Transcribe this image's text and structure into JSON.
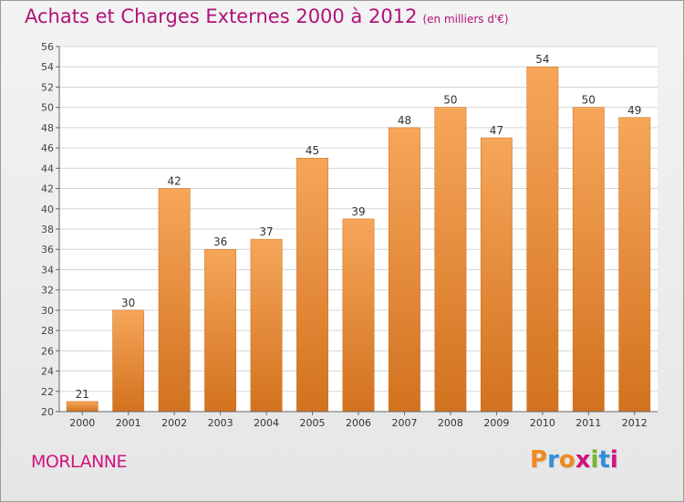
{
  "header": {
    "title": "Achats et Charges Externes 2000 à 2012",
    "subtitle": "(en milliers d'€)"
  },
  "commune": "MORLANNE",
  "logo": {
    "letters": [
      "P",
      "r",
      "o",
      "x",
      "i",
      "t",
      "i"
    ]
  },
  "colors": {
    "title": "#b0127a",
    "bar_light": "#f6a65a",
    "bar_dark": "#d2721e",
    "grid": "#d6d6d6",
    "axis": "#666666"
  },
  "chart_data": {
    "type": "bar",
    "title": "Achats et Charges Externes 2000 à 2012",
    "subtitle": "(en milliers d'€)",
    "xlabel": "",
    "ylabel": "",
    "categories": [
      "2000",
      "2001",
      "2002",
      "2003",
      "2004",
      "2005",
      "2006",
      "2007",
      "2008",
      "2009",
      "2010",
      "2011",
      "2012"
    ],
    "values": [
      21,
      30,
      42,
      36,
      37,
      45,
      39,
      48,
      50,
      47,
      54,
      50,
      49
    ],
    "ylim": [
      20,
      56
    ],
    "yticks": [
      20,
      22,
      24,
      26,
      28,
      30,
      32,
      34,
      36,
      38,
      40,
      42,
      44,
      46,
      48,
      50,
      52,
      54,
      56
    ],
    "grid": true,
    "data_labels": true
  }
}
